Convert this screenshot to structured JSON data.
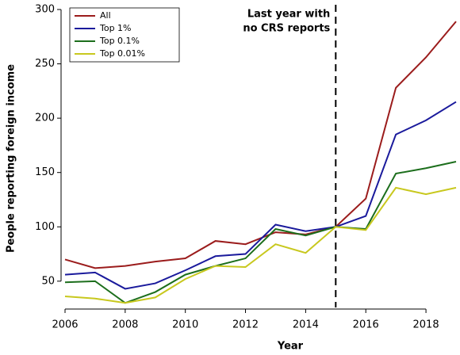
{
  "chart_data": {
    "type": "line",
    "xlabel": "Year",
    "ylabel": "People reporting foreign income",
    "x": [
      2006,
      2007,
      2008,
      2009,
      2010,
      2011,
      2012,
      2013,
      2014,
      2015,
      2016,
      2017,
      2018,
      2019
    ],
    "series": [
      {
        "name": "All",
        "color": "#9b1c1c",
        "values": [
          70,
          62,
          64,
          68,
          71,
          87,
          84,
          95,
          93,
          100,
          126,
          228,
          256,
          289
        ]
      },
      {
        "name": "Top 1%",
        "color": "#1a1a9c",
        "values": [
          56,
          58,
          43,
          48,
          60,
          73,
          75,
          102,
          96,
          100,
          110,
          185,
          198,
          215
        ]
      },
      {
        "name": "Top 0.1%",
        "color": "#1c6e1c",
        "values": [
          49,
          50,
          30,
          40,
          56,
          64,
          71,
          98,
          92,
          100,
          98,
          149,
          154,
          160
        ]
      },
      {
        "name": "Top 0.01%",
        "color": "#c8c81e",
        "values": [
          36,
          34,
          30,
          35,
          52,
          64,
          63,
          84,
          76,
          100,
          97,
          136,
          130,
          136
        ]
      }
    ],
    "xlim": [
      2006,
      2019
    ],
    "xticks": [
      2006,
      2008,
      2010,
      2012,
      2014,
      2016,
      2018
    ],
    "ylim": [
      28,
      300
    ],
    "yticks": [
      50,
      100,
      150,
      200,
      250,
      300
    ],
    "vline": 2015,
    "annotation": [
      "Last year with",
      "no CRS reports"
    ],
    "legend": "upper left"
  }
}
